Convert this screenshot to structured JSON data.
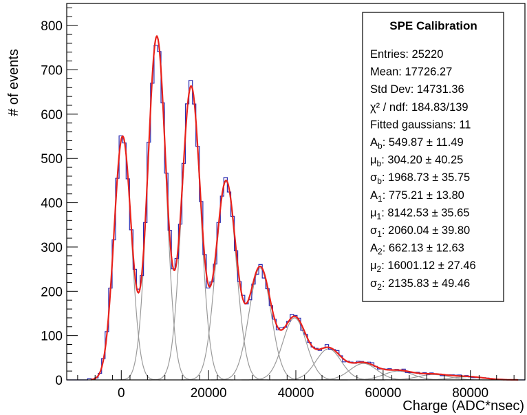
{
  "chart_data": {
    "type": "histogram",
    "xlabel": "Charge (ADC*nsec)",
    "ylabel": "# of events",
    "xlim": [
      -12500,
      92500
    ],
    "ylim": [
      0,
      850
    ],
    "xticks": [
      0,
      20000,
      40000,
      60000,
      80000
    ],
    "xtick_labels": [
      "0",
      "20000",
      "40000",
      "60000",
      "80000"
    ],
    "yticks": [
      0,
      100,
      200,
      300,
      400,
      500,
      600,
      700,
      800
    ],
    "ytick_labels": [
      "0",
      "100",
      "200",
      "300",
      "400",
      "500",
      "600",
      "700",
      "800"
    ],
    "grid": false,
    "colors": {
      "histogram": "#2b2bb0",
      "fit_total": "#e8211b",
      "fit_components": "#9a9a9a",
      "frame": "#000000"
    },
    "peaks": [
      {
        "x": 0,
        "y": 588
      },
      {
        "x": 8000,
        "y": 797
      },
      {
        "x": 16000,
        "y": 670
      },
      {
        "x": 24000,
        "y": 462
      },
      {
        "x": 32000,
        "y": 258
      },
      {
        "x": 40000,
        "y": 147
      },
      {
        "x": 48000,
        "y": 74
      },
      {
        "x": 56000,
        "y": 42
      },
      {
        "x": 64000,
        "y": 22
      }
    ],
    "valleys": [
      {
        "x": 4000,
        "y": 200
      },
      {
        "x": 12000,
        "y": 252
      },
      {
        "x": 20000,
        "y": 215
      },
      {
        "x": 28000,
        "y": 157
      },
      {
        "x": 36000,
        "y": 100
      }
    ],
    "fit_components": [
      {
        "mean": 304.2,
        "sigma": 1968.73,
        "amp": 549.87
      },
      {
        "mean": 8142.53,
        "sigma": 2060.04,
        "amp": 775.21
      },
      {
        "mean": 16001.12,
        "sigma": 2135.83,
        "amp": 662.13
      },
      {
        "mean": 24000,
        "sigma": 2300,
        "amp": 448
      },
      {
        "mean": 31800,
        "sigma": 2500,
        "amp": 253
      },
      {
        "mean": 39700,
        "sigma": 2700,
        "amp": 140
      },
      {
        "mean": 47500,
        "sigma": 2900,
        "amp": 70
      },
      {
        "mean": 55500,
        "sigma": 3100,
        "amp": 37
      },
      {
        "mean": 63500,
        "sigma": 3300,
        "amp": 20
      },
      {
        "mean": 71500,
        "sigma": 3500,
        "amp": 12
      },
      {
        "mean": 79500,
        "sigma": 3700,
        "amp": 7
      }
    ],
    "stats_box": {
      "title": "SPE Calibration",
      "lines": [
        "Entries: 25220",
        "Mean: 17726.27",
        "Std Dev: 14731.36",
        "χ² / ndf: 184.83/139",
        "Fitted gaussians: 11",
        "A_b: 549.87 ± 11.49",
        "μ_b: 304.20 ± 40.25",
        "σ_b: 1968.73 ± 35.75",
        "A_1: 775.21 ± 13.80",
        "μ_1: 8142.53 ± 35.65",
        "σ_1: 2060.04 ± 39.80",
        "A_2: 662.13 ± 12.63",
        "μ_2: 16001.12 ± 27.46",
        "σ_2: 2135.83 ± 49.46"
      ]
    }
  }
}
